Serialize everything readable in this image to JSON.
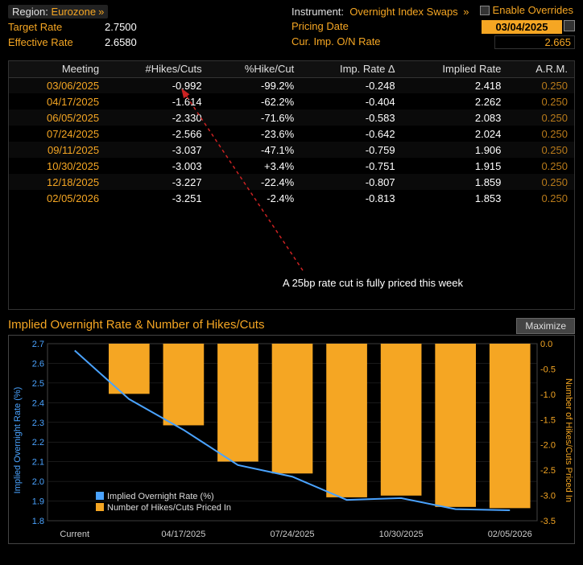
{
  "header": {
    "enable_overrides": "Enable Overrides",
    "region_label": "Region:",
    "region_value": "Eurozone",
    "instrument_label": "Instrument:",
    "instrument_value": "Overnight Index Swaps",
    "target_rate_label": "Target Rate",
    "target_rate_value": "2.7500",
    "effective_rate_label": "Effective Rate",
    "effective_rate_value": "2.6580",
    "pricing_date_label": "Pricing Date",
    "pricing_date_value": "03/04/2025",
    "cur_imp_label": "Cur. Imp. O/N Rate",
    "cur_imp_value": "2.665"
  },
  "table": {
    "columns": [
      "Meeting",
      "#Hikes/Cuts",
      "%Hike/Cut",
      "Imp. Rate Δ",
      "Implied Rate",
      "A.R.M."
    ],
    "rows": [
      [
        "03/06/2025",
        "-0.992",
        "-99.2%",
        "-0.248",
        "2.418",
        "0.250"
      ],
      [
        "04/17/2025",
        "-1.614",
        "-62.2%",
        "-0.404",
        "2.262",
        "0.250"
      ],
      [
        "06/05/2025",
        "-2.330",
        "-71.6%",
        "-0.583",
        "2.083",
        "0.250"
      ],
      [
        "07/24/2025",
        "-2.566",
        "-23.6%",
        "-0.642",
        "2.024",
        "0.250"
      ],
      [
        "09/11/2025",
        "-3.037",
        "-47.1%",
        "-0.759",
        "1.906",
        "0.250"
      ],
      [
        "10/30/2025",
        "-3.003",
        "+3.4%",
        "-0.751",
        "1.915",
        "0.250"
      ],
      [
        "12/18/2025",
        "-3.227",
        "-22.4%",
        "-0.807",
        "1.859",
        "0.250"
      ],
      [
        "02/05/2026",
        "-3.251",
        "-2.4%",
        "-0.813",
        "1.853",
        "0.250"
      ]
    ],
    "annotation": "A 25bp rate cut is fully priced this week"
  },
  "chart": {
    "title": "Implied Overnight Rate & Number of Hikes/Cuts",
    "maximize": "Maximize",
    "type": "combo-bar-line",
    "y_left": {
      "label": "Implied Overnight Rate (%)",
      "min": 1.8,
      "max": 2.7,
      "step": 0.1,
      "ticks": [
        "2.7",
        "2.6",
        "2.5",
        "2.4",
        "2.3",
        "2.2",
        "2.1",
        "2.0",
        "1.9",
        "1.8"
      ],
      "color": "#4aa3ff",
      "label_color": "#4aa3ff"
    },
    "y_right": {
      "label": "Number of Hikes/Cuts Priced In",
      "min": -3.5,
      "max": 0.0,
      "step": 0.5,
      "ticks": [
        "0.0",
        "-0.5",
        "-1.0",
        "-1.5",
        "-2.0",
        "-2.5",
        "-3.0",
        "-3.5"
      ],
      "color": "#f5a623",
      "label_color": "#f5a623"
    },
    "x_labels": [
      "Current",
      "",
      "04/17/2025",
      "",
      "07/24/2025",
      "",
      "10/30/2025",
      "",
      "02/05/2026"
    ],
    "line_values": [
      2.665,
      2.418,
      2.262,
      2.083,
      2.024,
      1.906,
      1.915,
      1.859,
      1.853
    ],
    "bar_values": [
      null,
      -0.992,
      -1.614,
      -2.33,
      -2.566,
      -3.037,
      -3.003,
      -3.227,
      -3.251
    ],
    "bar_color": "#f5a623",
    "line_color": "#4aa3ff",
    "grid_color": "#333333",
    "background_color": "#000000",
    "legend": [
      {
        "label": "Implied Overnight Rate (%)",
        "color": "#4aa3ff",
        "type": "line"
      },
      {
        "label": "Number of Hikes/Cuts Priced In",
        "color": "#f5a623",
        "type": "bar"
      }
    ]
  }
}
